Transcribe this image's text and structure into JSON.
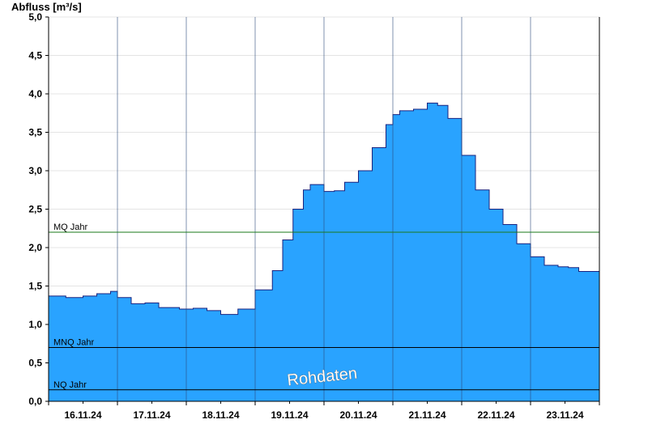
{
  "chart_data": {
    "type": "area",
    "ylabel": "Abfluss [m³/s]",
    "ylim": [
      0,
      5
    ],
    "yticks": [
      0,
      0.5,
      1,
      1.5,
      2,
      2.5,
      3,
      3.5,
      4,
      4.5,
      5
    ],
    "ytick_labels": [
      "0,0",
      "0,5",
      "1,0",
      "1,5",
      "2,0",
      "2,5",
      "3,0",
      "3,5",
      "4,0",
      "4,5",
      "5,0"
    ],
    "xlim_days": [
      0,
      8
    ],
    "x_categories": [
      "16.11.24",
      "17.11.24",
      "18.11.24",
      "19.11.24",
      "20.11.24",
      "21.11.24",
      "22.11.24",
      "23.11.24"
    ],
    "grid": true,
    "series": [
      {
        "color": "#29a3ff",
        "line_color": "#1a237e",
        "values": [
          [
            0.0,
            1.37
          ],
          [
            0.25,
            1.35
          ],
          [
            0.5,
            1.37
          ],
          [
            0.7,
            1.4
          ],
          [
            0.9,
            1.43
          ],
          [
            1.0,
            1.35
          ],
          [
            1.2,
            1.27
          ],
          [
            1.4,
            1.28
          ],
          [
            1.6,
            1.22
          ],
          [
            1.9,
            1.2
          ],
          [
            2.1,
            1.21
          ],
          [
            2.3,
            1.18
          ],
          [
            2.5,
            1.13
          ],
          [
            2.75,
            1.2
          ],
          [
            3.0,
            1.45
          ],
          [
            3.25,
            1.7
          ],
          [
            3.4,
            2.1
          ],
          [
            3.55,
            2.5
          ],
          [
            3.7,
            2.75
          ],
          [
            3.8,
            2.82
          ],
          [
            4.0,
            2.73
          ],
          [
            4.15,
            2.74
          ],
          [
            4.3,
            2.85
          ],
          [
            4.5,
            3.0
          ],
          [
            4.7,
            3.3
          ],
          [
            4.9,
            3.6
          ],
          [
            5.0,
            3.73
          ],
          [
            5.1,
            3.78
          ],
          [
            5.3,
            3.8
          ],
          [
            5.5,
            3.88
          ],
          [
            5.65,
            3.85
          ],
          [
            5.8,
            3.68
          ],
          [
            6.0,
            3.2
          ],
          [
            6.2,
            2.75
          ],
          [
            6.4,
            2.5
          ],
          [
            6.6,
            2.3
          ],
          [
            6.8,
            2.05
          ],
          [
            7.0,
            1.88
          ],
          [
            7.2,
            1.77
          ],
          [
            7.4,
            1.75
          ],
          [
            7.55,
            1.74
          ],
          [
            7.7,
            1.69
          ],
          [
            8.0,
            1.65
          ]
        ]
      }
    ],
    "reference_lines": [
      {
        "label": "MQ Jahr",
        "value": 2.2,
        "color": "#1a7a1a"
      },
      {
        "label": "MNQ Jahr",
        "value": 0.7,
        "color": "#000000"
      },
      {
        "label": "NQ Jahr",
        "value": 0.15,
        "color": "#000000"
      }
    ],
    "watermark": "Rohdaten"
  }
}
